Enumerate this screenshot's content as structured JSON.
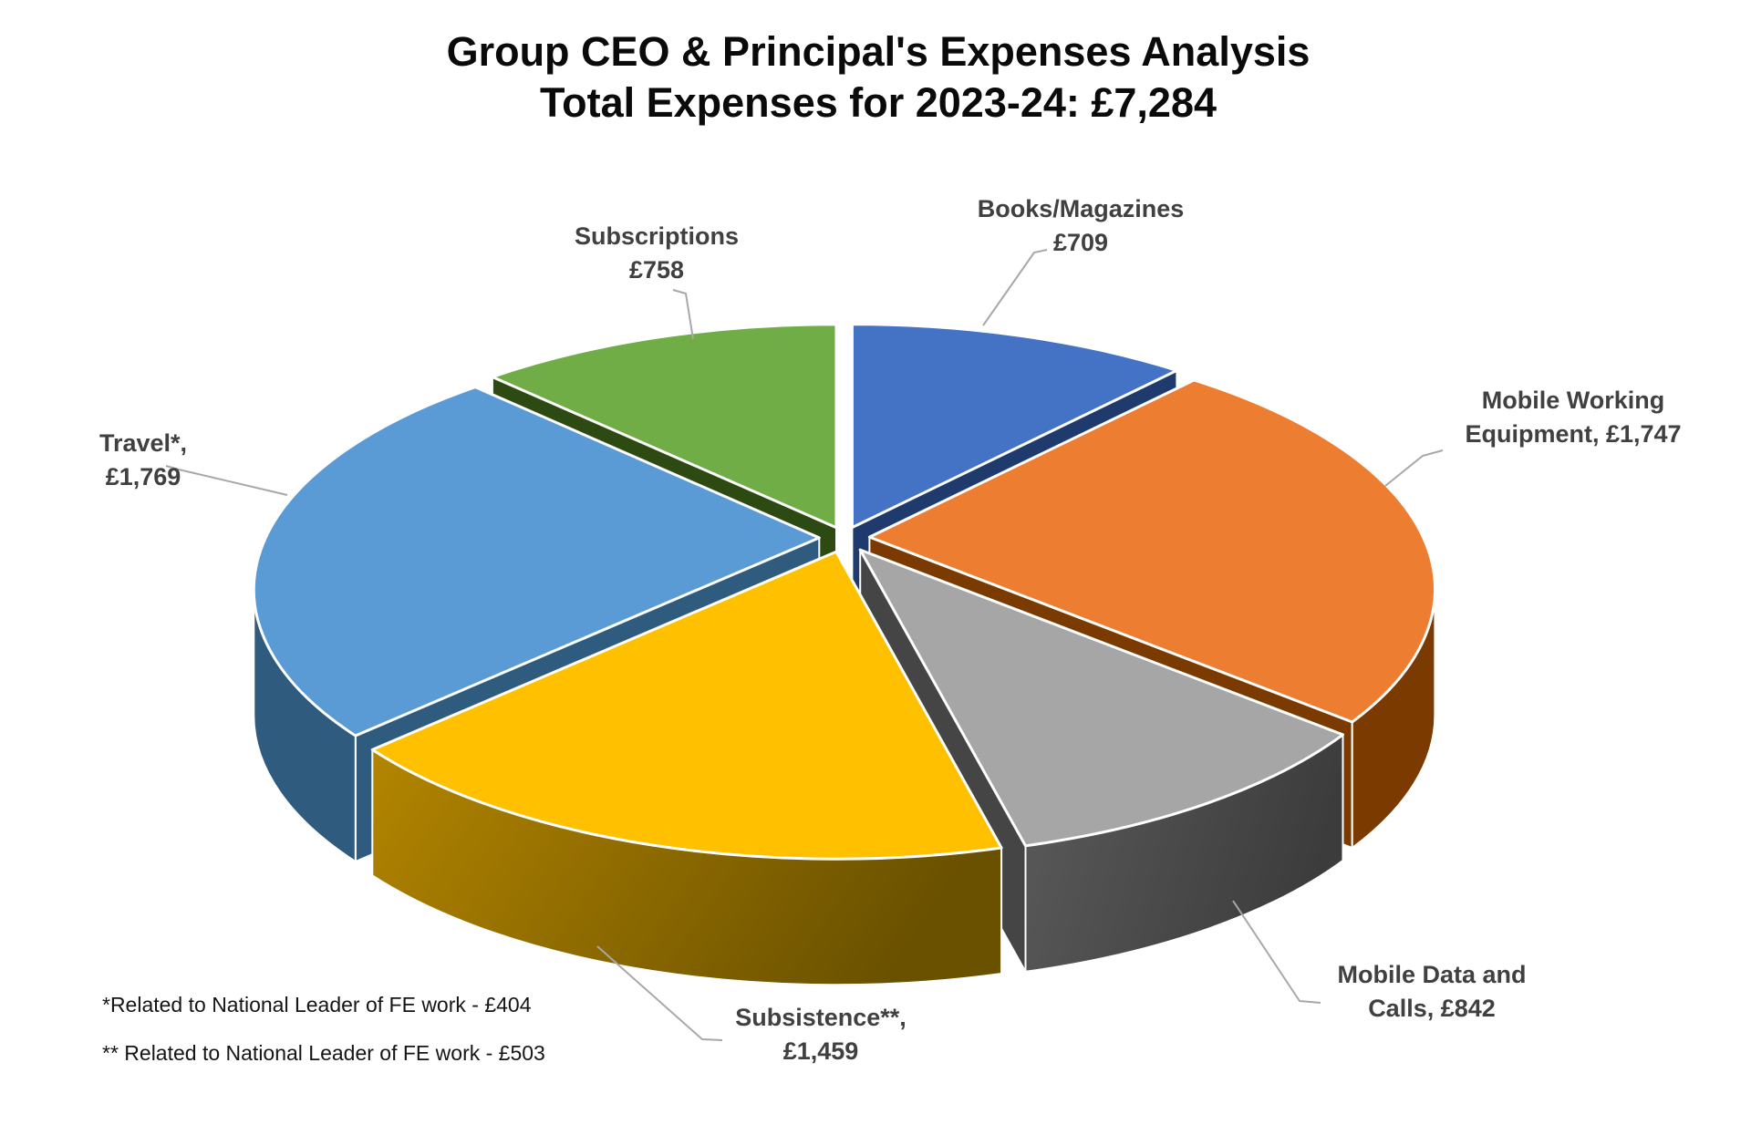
{
  "title": {
    "line1": "Group CEO & Principal's Expenses Analysis",
    "line2": "Total Expenses for 2023-24: £7,284"
  },
  "footnotes": [
    "*Related to National Leader of FE work - £404",
    "** Related to National Leader of FE work - £503"
  ],
  "chart_data": {
    "type": "pie",
    "style": "3d-exploded",
    "title": "Group CEO & Principal's Expenses Analysis",
    "subtitle": "Total Expenses for 2023-24: £7,284",
    "total": 7284,
    "currency": "£",
    "legend_position": "none",
    "data_labels": "outside-with-leader-lines",
    "slices": [
      {
        "label": "Books/Magazines",
        "label_lines": [
          "Books/Magazines",
          "£709"
        ],
        "value": 709,
        "color": "#4472C4",
        "side_color": "#1F3B6D"
      },
      {
        "label": "Mobile Working Equipment",
        "label_lines": [
          "Mobile Working",
          "Equipment, £1,747"
        ],
        "value": 1747,
        "color": "#ED7D31",
        "side_color": "#7B3A00"
      },
      {
        "label": "Mobile Data and Calls",
        "label_lines": [
          "Mobile Data and",
          "Calls, £842"
        ],
        "value": 842,
        "color": "#A6A6A6",
        "side_color": "#454545"
      },
      {
        "label": "Subsistence",
        "label_lines": [
          "Subsistence**,",
          "£1,459"
        ],
        "value": 1459,
        "color": "#FFC000",
        "side_color": "#7F6000"
      },
      {
        "label": "Travel",
        "label_lines": [
          "Travel*,",
          "£1,769"
        ],
        "value": 1769,
        "color": "#5B9BD5",
        "side_color": "#2F5B7E"
      },
      {
        "label": "Subscriptions",
        "label_lines": [
          "Subscriptions",
          "£758"
        ],
        "value": 758,
        "color": "#70AD47",
        "side_color": "#2C4A12"
      }
    ]
  }
}
